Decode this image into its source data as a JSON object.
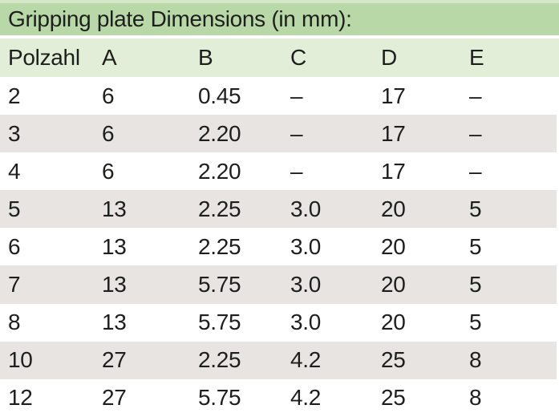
{
  "title": "Gripping plate Dimensions (in mm):",
  "table": {
    "columns": [
      "Polzahl",
      "A",
      "B",
      "C",
      "D",
      "E"
    ],
    "rows": [
      [
        "2",
        "6",
        "0.45",
        "–",
        "17",
        "–"
      ],
      [
        "3",
        "6",
        "2.20",
        "–",
        "17",
        "–"
      ],
      [
        "4",
        "6",
        "2.20",
        "–",
        "17",
        "–"
      ],
      [
        "5",
        "13",
        "2.25",
        "3.0",
        "20",
        "5"
      ],
      [
        "6",
        "13",
        "2.25",
        "3.0",
        "20",
        "5"
      ],
      [
        "7",
        "13",
        "5.75",
        "3.0",
        "20",
        "5"
      ],
      [
        "8",
        "13",
        "5.75",
        "3.0",
        "20",
        "5"
      ],
      [
        "10",
        "27",
        "2.25",
        "4.2",
        "25",
        "8"
      ],
      [
        "12",
        "27",
        "5.75",
        "4.2",
        "25",
        "8"
      ]
    ]
  },
  "colors": {
    "top_strip": "#d4e7c6",
    "title_bg": "#b9d8a8",
    "header_bg": "#e2eed8",
    "row_white": "#ffffff",
    "row_gray": "#e7e4e1",
    "text": "#1d1f1c"
  }
}
